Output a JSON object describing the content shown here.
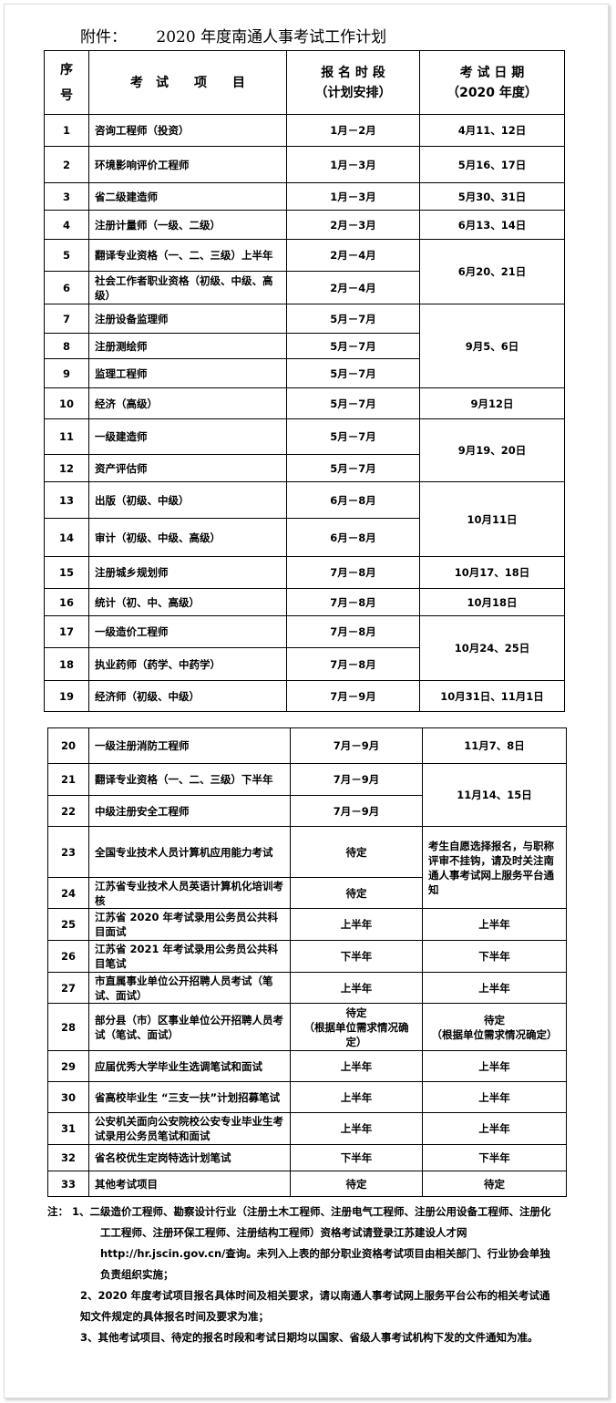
{
  "title": "附件：      2020 年度南通人事考试工作计划",
  "headers": {
    "no": "序号",
    "item": "考　试　　项　　目",
    "reg": "报 名 时 段\n（计划安排）",
    "date": "考 试 日 期\n（2020 年度）"
  },
  "rows": [
    {
      "no": "1",
      "item": "咨询工程师（投资）",
      "reg": "1月－2月",
      "date": "4月11、12日"
    },
    {
      "no": "2",
      "item": "环境影响评价工程师",
      "reg": "1月－3月",
      "date": "5月16、17日"
    },
    {
      "no": "3",
      "item": "省二级建造师",
      "reg": "1月－3月",
      "date": "5月30、31日"
    },
    {
      "no": "4",
      "item": "注册计量师（一级、二级）",
      "reg": "2月－3月",
      "date": "6月13、14日"
    },
    {
      "no": "5",
      "item": "翻译专业资格（一、二、三级）上半年",
      "reg": "2月－4月",
      "date": "6月20、21日"
    },
    {
      "no": "6",
      "item": "社会工作者职业资格（初级、中级、高级）",
      "reg": "2月－4月"
    },
    {
      "no": "7",
      "item": "注册设备监理师",
      "reg": "5月－7月",
      "date": "9月5、6日"
    },
    {
      "no": "8",
      "item": "注册测绘师",
      "reg": "5月－7月"
    },
    {
      "no": "9",
      "item": "监理工程师",
      "reg": "5月－7月"
    },
    {
      "no": "10",
      "item": "经济（高级）",
      "reg": "5月－7月",
      "date": "9月12日"
    },
    {
      "no": "11",
      "item": "一级建造师",
      "reg": "5月－7月",
      "date": "9月19、20日"
    },
    {
      "no": "12",
      "item": "资产评估师",
      "reg": "5月－7月"
    },
    {
      "no": "13",
      "item": "出版（初级、中级）",
      "reg": "6月－8月",
      "date": "10月11日"
    },
    {
      "no": "14",
      "item": "审计（初级、中级、高级）",
      "reg": "6月－8月"
    },
    {
      "no": "15",
      "item": "注册城乡规划师",
      "reg": "7月－8月",
      "date": "10月17、18日"
    },
    {
      "no": "16",
      "item": "统计（初、中、高级）",
      "reg": "7月－8月",
      "date": "10月18日"
    },
    {
      "no": "17",
      "item": "一级造价工程师",
      "reg": "7月－8月",
      "date": "10月24、25日"
    },
    {
      "no": "18",
      "item": "执业药师（药学、中药学）",
      "reg": "7月－8月"
    },
    {
      "no": "19",
      "item": "经济师（初级、中级）",
      "reg": "7月－9月",
      "date": "10月31日、11月1日"
    },
    {
      "no": "20",
      "item": "一级注册消防工程师",
      "reg": "7月－9月",
      "date": "11月7、8日"
    },
    {
      "no": "21",
      "item": "翻译专业资格（一、二、三级）下半年",
      "reg": "7月－9月",
      "date": "11月14、15日"
    },
    {
      "no": "22",
      "item": "中级注册安全工程师",
      "reg": "7月－9月"
    },
    {
      "no": "23",
      "item": "全国专业技术人员计算机应用能力考试",
      "reg": "待定",
      "date": "考生自愿选择报名，与职称评审不挂钩，请及时关注南通人事考试网上服务平台通知"
    },
    {
      "no": "24",
      "item": "江苏省专业技术人员英语计算机化培训考核",
      "reg": "待定"
    },
    {
      "no": "25",
      "item": "江苏省 2020 年考试录用公务员公共科目面试",
      "reg": "上半年",
      "date": "上半年"
    },
    {
      "no": "26",
      "item": "江苏省 2021 年考试录用公务员公共科目笔试",
      "reg": "下半年",
      "date": "下半年"
    },
    {
      "no": "27",
      "item": "市直属事业单位公开招聘人员考试（笔试、面试）",
      "reg": "上半年",
      "date": "上半年"
    },
    {
      "no": "28",
      "item": "部分县（市）区事业单位公开招聘人员考试（笔试、面试）",
      "reg": "待定\n（根据单位需求情况确定）",
      "date": "待定\n（根据单位需求情况确定）"
    },
    {
      "no": "29",
      "item": "应届优秀大学毕业生选调笔试和面试",
      "reg": "上半年",
      "date": "上半年"
    },
    {
      "no": "30",
      "item": "省高校毕业生 “三支一扶”计划招募笔试",
      "reg": "上半年",
      "date": "上半年"
    },
    {
      "no": "31",
      "item": "公安机关面向公安院校公安专业毕业生考试录用公务员笔试和面试",
      "reg": "上半年",
      "date": "上半年"
    },
    {
      "no": "32",
      "item": "省名校优生定岗特选计划笔试",
      "reg": "下半年",
      "date": "下半年"
    },
    {
      "no": "33",
      "item": "其他考试项目",
      "reg": "待定",
      "date": "待定"
    }
  ],
  "notes": [
    "注： 1、二级造价工程师、勘察设计行业（注册土木工程师、注册电气工程师、注册公用设备工程师、注册化工工程师、注册环保工程师、注册结构工程师）资格考试请登录江苏建设人才网 http://hr.jscin.gov.cn/查询。未列入上表的部分职业资格考试项目由相关部门、行业协会单独负责组织实施；",
    "2、2020 年度考试项目报名具体时间及相关要求，请以南通人事考试网上服务平台公布的相关考试通知文件规定的具体报名时间及要求为准；",
    "3、其他考试项目、待定的报名时段和考试日期均以国家、省级人事考试机构下发的文件通知为准。"
  ]
}
